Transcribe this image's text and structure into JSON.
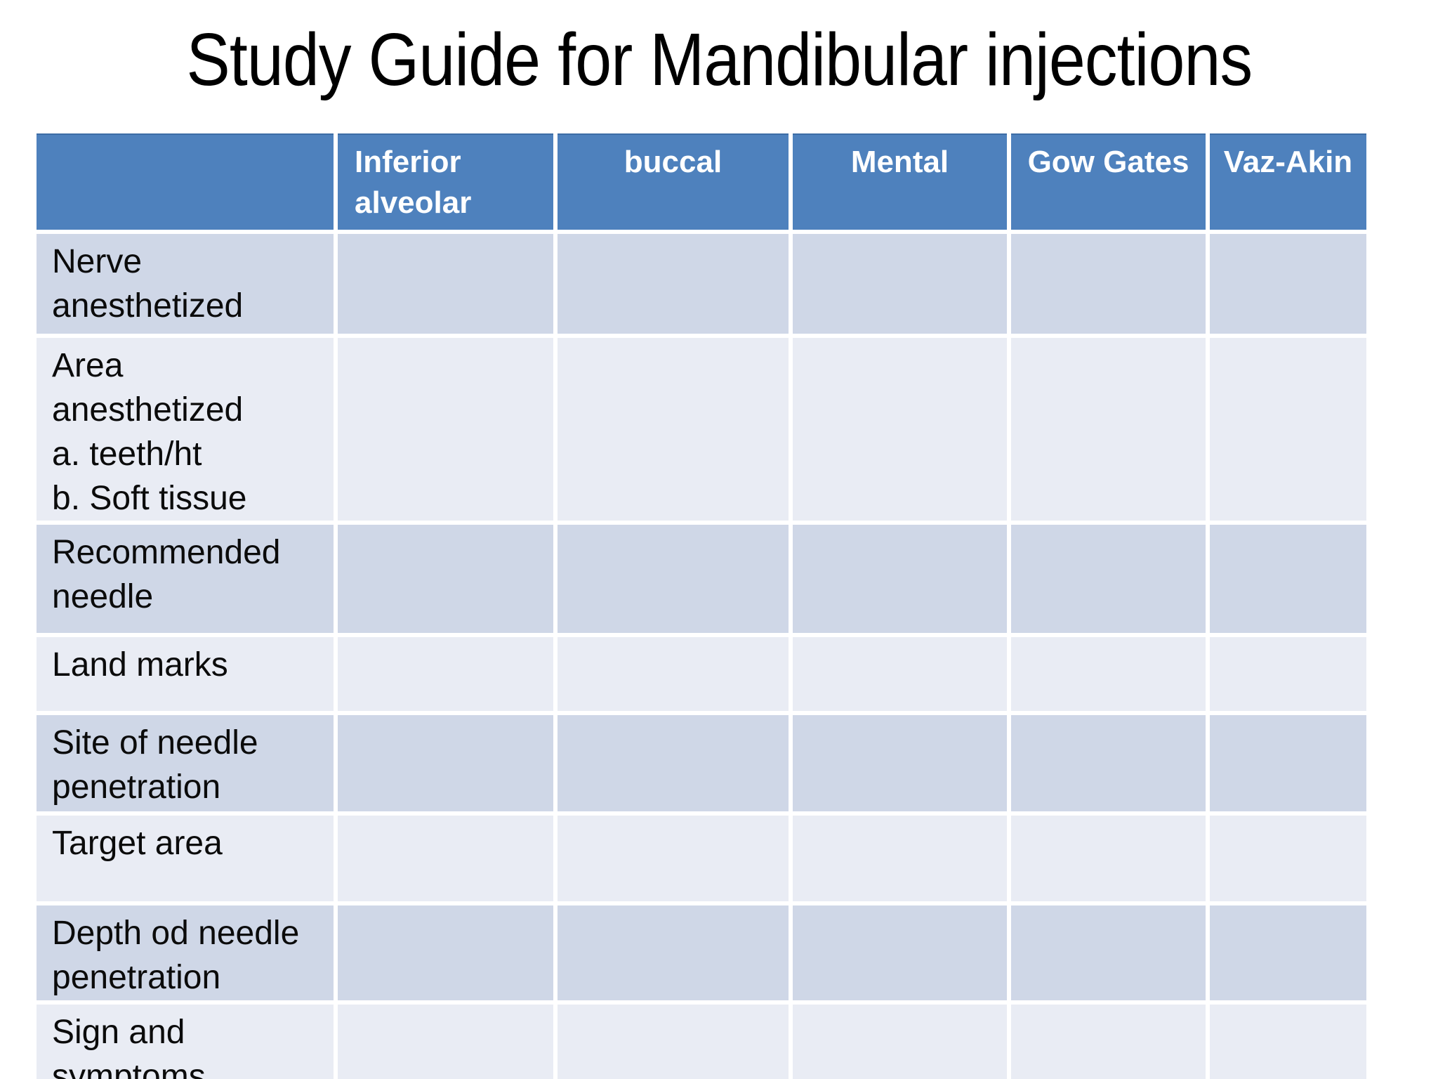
{
  "slide": {
    "title": "Study Guide for Mandibular injections",
    "background_color": "#ffffff",
    "title_color": "#000000"
  },
  "table": {
    "header_bg_color": "#4E81BD",
    "header_text_color": "#ffffff",
    "band_dark_color": "#CFD7E7",
    "band_light_color": "#E9ECF4",
    "gridline_color": "#ffffff",
    "columns": [
      {
        "label": ""
      },
      {
        "label": "Inferior\nalveolar"
      },
      {
        "label": "buccal"
      },
      {
        "label": "Mental"
      },
      {
        "label": "Gow Gates"
      },
      {
        "label": "Vaz-Akin"
      }
    ],
    "rows": [
      {
        "label": "Nerve\nanesthetized",
        "cells": [
          "",
          "",
          "",
          "",
          ""
        ]
      },
      {
        "label": "Area anesthetized\na. teeth/ht\nb. Soft tissue",
        "cells": [
          "",
          "",
          "",
          "",
          ""
        ]
      },
      {
        "label": "Recommended\nneedle",
        "cells": [
          "",
          "",
          "",
          "",
          ""
        ]
      },
      {
        "label": "Land marks",
        "cells": [
          "",
          "",
          "",
          "",
          ""
        ]
      },
      {
        "label": "Site of needle\npenetration",
        "cells": [
          "",
          "",
          "",
          "",
          ""
        ]
      },
      {
        "label": "Target area",
        "cells": [
          "",
          "",
          "",
          "",
          ""
        ]
      },
      {
        "label": "Depth od needle\npenetration",
        "cells": [
          "",
          "",
          "",
          "",
          ""
        ]
      },
      {
        "label": "Sign and\nsymptoms",
        "cells": [
          "",
          "",
          "",
          "",
          ""
        ]
      }
    ]
  }
}
